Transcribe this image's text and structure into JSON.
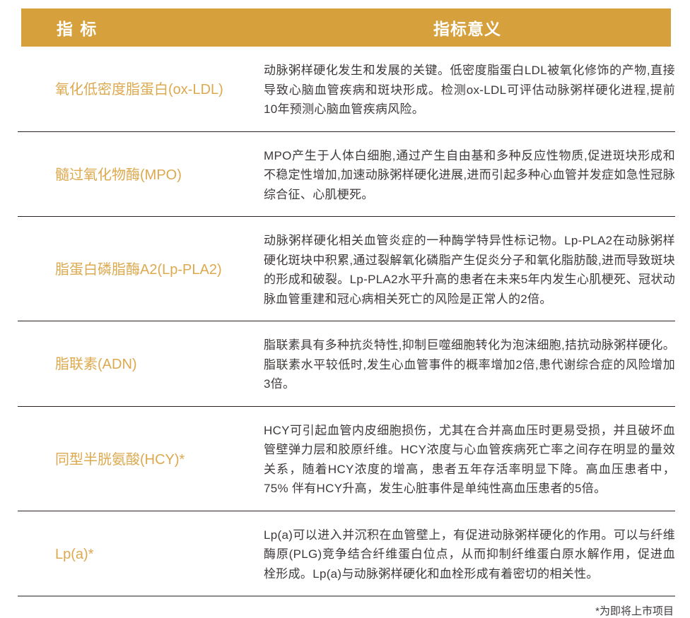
{
  "header": {
    "indicator_label": "指 标",
    "meaning_label": "指标意义"
  },
  "rows": [
    {
      "indicator": "氧化低密度脂蛋白(ox-LDL)",
      "meaning": "动脉粥样硬化发生和发展的关键。低密度脂蛋白LDL被氧化修饰的产物,直接导致心脑血管疾病和斑块形成。检测ox-LDL可评估动脉粥样硬化进程,提前10年预测心脑血管疾病风险。"
    },
    {
      "indicator": "髓过氧化物酶(MPO)",
      "meaning": "MPO产生于人体白细胞,通过产生自由基和多种反应性物质,促进斑块形成和不稳定性增加,加速动脉粥样硬化进展,进而引起多种心血管并发症如急性冠脉综合征、心肌梗死。"
    },
    {
      "indicator": "脂蛋白磷脂酶A2(Lp-PLA2)",
      "meaning": "动脉粥样硬化相关血管炎症的一种酶学特异性标记物。Lp-PLA2在动脉粥样硬化斑块中积累,通过裂解氧化磷脂产生促炎分子和氧化脂肪酸,进而导致斑块的形成和破裂。Lp-PLA2水平升高的患者在未来5年内发生心肌梗死、冠状动脉血管重建和冠心病相关死亡的风险是正常人的2倍。"
    },
    {
      "indicator": "脂联素(ADN)",
      "meaning": "脂联素具有多种抗炎特性,抑制巨噬细胞转化为泡沫细胞,拮抗动脉粥样硬化。脂联素水平较低时,发生心血管事件的概率增加2倍,患代谢综合症的风险增加3倍。"
    },
    {
      "indicator": "同型半胱氨酸(HCY)*",
      "meaning": "HCY可引起血管内皮细胞损伤，尤其在合并高血压时更易受损，并且破坏血管壁弹力层和胶原纤维。HCY浓度与心血管疾病死亡率之间存在明显的量效关系，随着HCY浓度的增高，患者五年存活率明显下降。高血压患者中，75% 伴有HCY升高，发生心脏事件是单纯性高血压患者的5倍。"
    },
    {
      "indicator": "Lp(a)*",
      "meaning": "Lp(a)可以进入并沉积在血管壁上，有促进动脉粥样硬化的作用。可以与纤维酶原(PLG)竞争结合纤维蛋白位点，从而抑制纤维蛋白原水解作用，促进血栓形成。Lp(a)与动脉粥样硬化和血栓形成有着密切的相关性。"
    }
  ],
  "footnote": "*为即将上市项目",
  "colors": {
    "header_bg": "#D6A13D",
    "indicator_text": "#DCA94F",
    "body_text": "#3E3A39",
    "divider": "#2B2220",
    "footer_divider": "#8C8C8C"
  }
}
